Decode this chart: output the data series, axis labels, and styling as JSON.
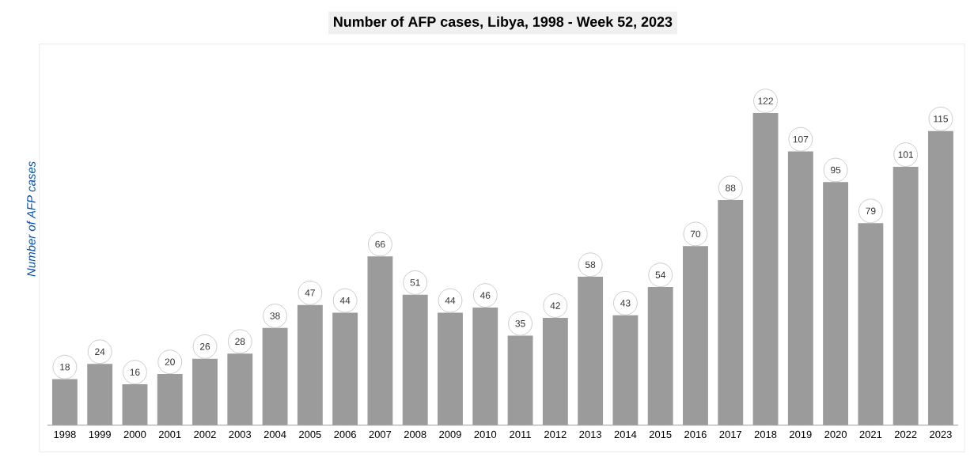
{
  "chart_data": {
    "type": "bar",
    "title": "Number of AFP cases, Libya, 1998 - Week 52, 2023",
    "ylabel": "Number of AFP cases",
    "categories": [
      "1998",
      "1999",
      "2000",
      "2001",
      "2002",
      "2003",
      "2004",
      "2005",
      "2006",
      "2007",
      "2008",
      "2009",
      "2010",
      "2011",
      "2012",
      "2013",
      "2014",
      "2015",
      "2016",
      "2017",
      "2018",
      "2019",
      "2020",
      "2021",
      "2022",
      "2023"
    ],
    "values": [
      18,
      24,
      16,
      20,
      26,
      28,
      38,
      47,
      44,
      66,
      51,
      44,
      46,
      35,
      42,
      58,
      43,
      54,
      70,
      88,
      122,
      107,
      95,
      79,
      101,
      115
    ],
    "color": "#9b9b9b",
    "data_labels": true
  }
}
